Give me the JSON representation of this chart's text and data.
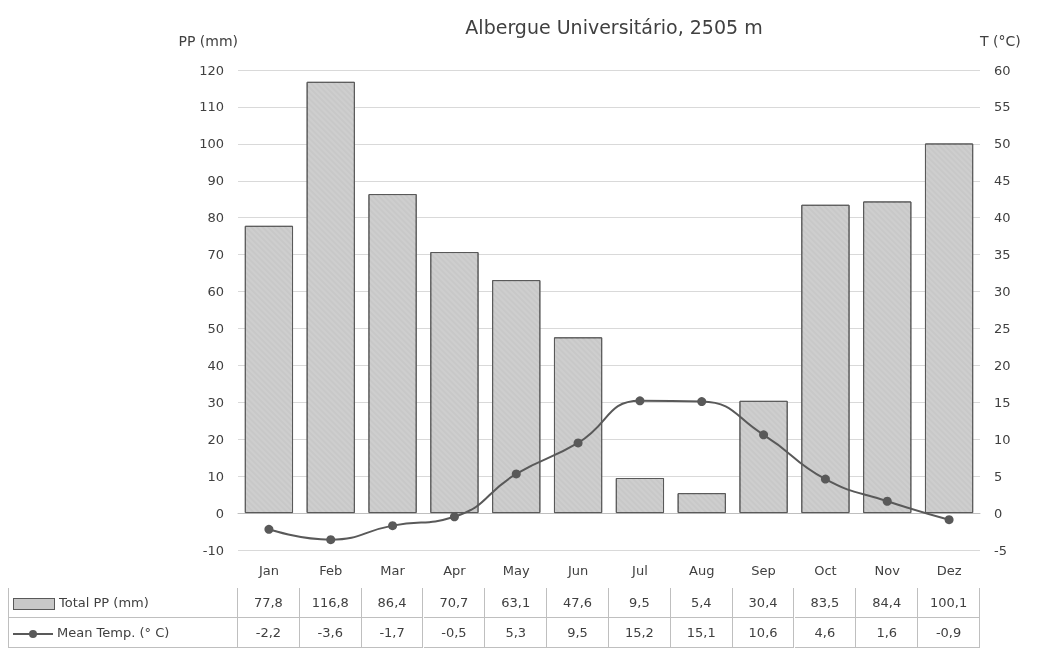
{
  "chart_data": {
    "type": "bar",
    "title": "Albergue Universitário, 2505 m",
    "ylabel": "PP (mm)",
    "y2label": "T (°C)",
    "categories": [
      "Jan",
      "Feb",
      "Mar",
      "Apr",
      "May",
      "Jun",
      "Jul",
      "Aug",
      "Sep",
      "Oct",
      "Nov",
      "Dez"
    ],
    "series": [
      {
        "name": "Total PP (mm)",
        "color": "#c8c8c8",
        "values": [
          77.8,
          116.8,
          86.4,
          70.7,
          63.1,
          47.6,
          9.5,
          5.4,
          30.4,
          83.5,
          84.4,
          100.1
        ],
        "value_labels": [
          "77,8",
          "116,8",
          "86,4",
          "70,7",
          "63,1",
          "47,6",
          "9,5",
          "5,4",
          "30,4",
          "83,5",
          "84,4",
          "100,1"
        ]
      },
      {
        "name": "Mean Temp. (° C)",
        "type": "line",
        "axis": "y2",
        "color": "#595959",
        "values": [
          -2.2,
          -3.6,
          -1.7,
          -0.5,
          5.3,
          9.5,
          15.2,
          15.1,
          10.6,
          4.6,
          1.6,
          -0.9
        ],
        "value_labels": [
          "-2,2",
          "-3,6",
          "-1,7",
          "-0,5",
          "5,3",
          "9,5",
          "15,2",
          "15,1",
          "10,6",
          "4,6",
          "1,6",
          "-0,9"
        ]
      }
    ],
    "ylim": [
      -10,
      120
    ],
    "yticks": [
      -10,
      0,
      10,
      20,
      30,
      40,
      50,
      60,
      70,
      80,
      90,
      100,
      110,
      120
    ],
    "y2lim": [
      -5,
      60
    ],
    "y2ticks": [
      -5,
      0,
      5,
      10,
      15,
      20,
      25,
      30,
      35,
      40,
      45,
      50,
      55,
      60
    ],
    "grid": "y",
    "legend": "bottom",
    "marker": "circle",
    "line_style": "solid"
  }
}
